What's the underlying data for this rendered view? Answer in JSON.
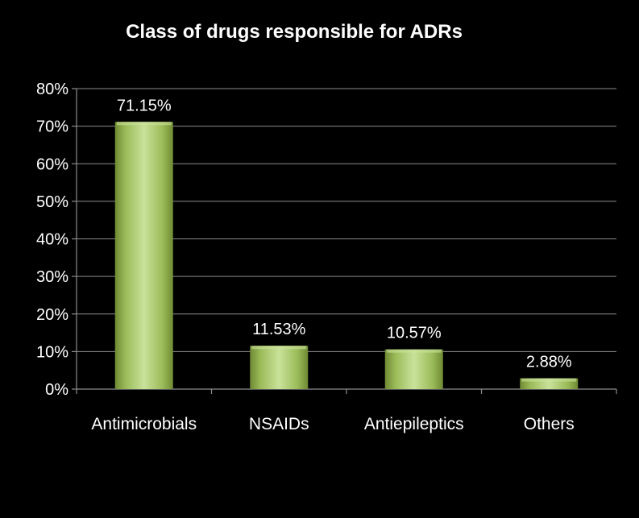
{
  "chart_data": {
    "type": "bar",
    "title": "Class of drugs responsible for ADRs",
    "xlabel": "",
    "ylabel": "",
    "categories": [
      "Antimicrobials",
      "NSAIDs",
      "Antiepileptics",
      "Others"
    ],
    "values": [
      71.15,
      11.53,
      10.57,
      2.88
    ],
    "data_labels": [
      "71.15%",
      "11.53%",
      "10.57%",
      "2.88%"
    ],
    "ylim": [
      0,
      80
    ],
    "yticks": [
      0,
      10,
      20,
      30,
      40,
      50,
      60,
      70,
      80
    ],
    "ytick_labels": [
      "0%",
      "10%",
      "20%",
      "30%",
      "40%",
      "50%",
      "60%",
      "70%",
      "80%"
    ],
    "grid": true,
    "legend": "none",
    "colors": {
      "background": "#000000",
      "bar_fill": "#9bbb59",
      "bar_highlight": "#c9e29a",
      "bar_shadow": "#6f8a33",
      "gridline": "#8c8c8c",
      "text": "#ffffff"
    }
  }
}
